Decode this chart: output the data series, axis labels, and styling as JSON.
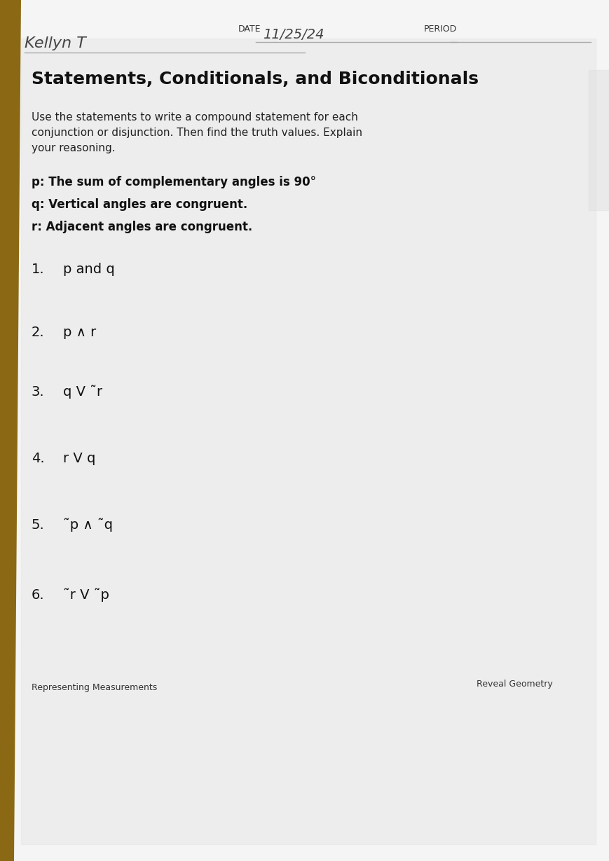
{
  "bg_color": "#e8e8e8",
  "page_bg": "#f0f0f0",
  "header_handwritten_name": "Kellyn T",
  "header_date_label": "DATE",
  "header_date_value": "11/25/24",
  "header_period_label": "PERIOD",
  "title": "Statements, Conditionals, and Biconditionals",
  "subtitle": "Use the statements to write a compound statement for each\nconjunction or disjunction. Then find the truth values. Explain\nyour reasoning.",
  "statements": [
    "p: The sum of complementary angles is 90°",
    "q: Vertical angles are congruent.",
    "r: Adjacent angles are congruent."
  ],
  "items": [
    {
      "num": "1.",
      "text": "p and q"
    },
    {
      "num": "2.",
      "text": "p ∧ r"
    },
    {
      "num": "3.",
      "text": "q V ˜r"
    },
    {
      "num": "4.",
      "text": "r V q"
    },
    {
      "num": "5.",
      "text": "˜p ∧ ˜q"
    },
    {
      "num": "6.",
      "text": "˜r V ˜p"
    }
  ],
  "footer_left": "Representing Measurements",
  "footer_right": "Reveal Geometry",
  "wood_color": "#8B6914",
  "paper_color": "#f5f5f5"
}
